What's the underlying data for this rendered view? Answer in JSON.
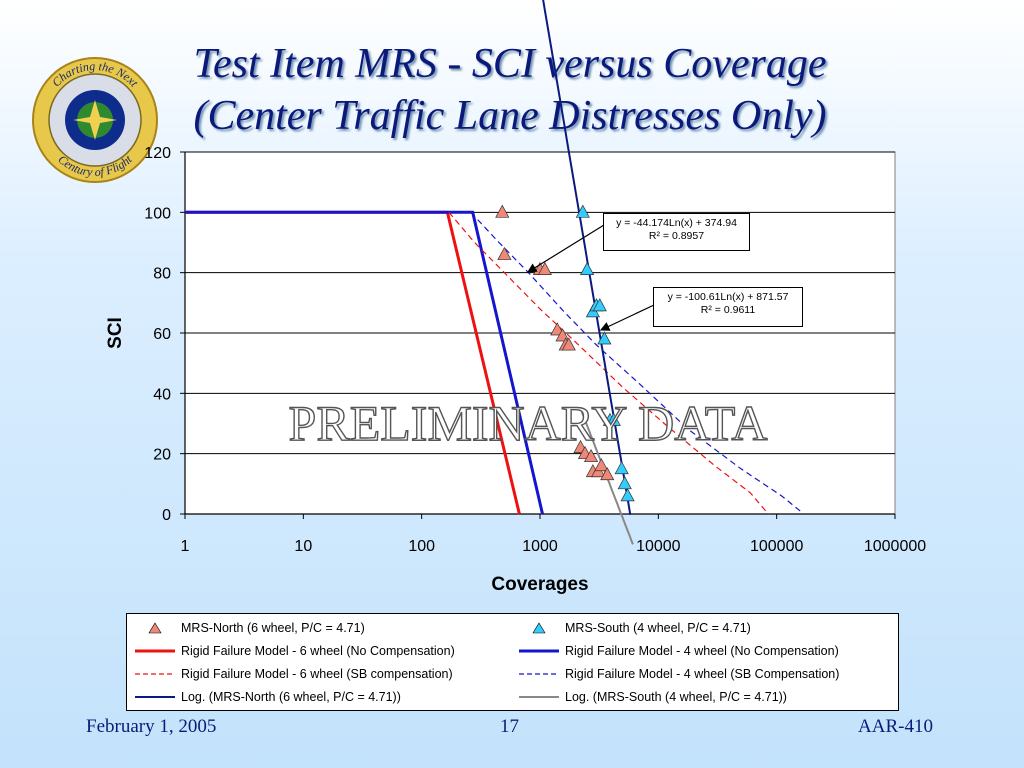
{
  "slide": {
    "title_line1": "Test Item MRS - SCI versus Coverage",
    "title_line2": "(Center Traffic Lane Distresses Only)",
    "footer_date": "February 1, 2005",
    "footer_page": "17",
    "footer_code": "AAR-410",
    "watermark": "PRELIMINARY DATA",
    "seal_text_top": "Charting the Next",
    "seal_text_bottom": "Century of Flight",
    "seal_ring": "FEDERAL AVIATION ADMINISTRATION"
  },
  "colors": {
    "title": "#0b1a7a",
    "north_marker": "#f08878",
    "south_marker": "#33ccff",
    "rigid6": "#ee1111",
    "rigid4": "#1515cc",
    "log_north": "#0a1a80",
    "log_south": "#888888"
  },
  "chart_data": {
    "type": "scatter",
    "title": "",
    "xlabel": "Coverages",
    "ylabel": "SCI",
    "x_scale": "log",
    "xlim": [
      1,
      1000000
    ],
    "ylim": [
      0,
      120
    ],
    "x_ticks": [
      "1",
      "10",
      "100",
      "1000",
      "10000",
      "100000",
      "1000000"
    ],
    "y_ticks": [
      "0",
      "20",
      "40",
      "60",
      "80",
      "100",
      "120"
    ],
    "grid": "horizontal",
    "legend_placement": "bottom",
    "series": [
      {
        "name": "MRS-North (6 wheel, P/C = 4.71)",
        "kind": "marker",
        "color": "#f08878",
        "points": [
          [
            480,
            100
          ],
          [
            500,
            86
          ],
          [
            1000,
            81
          ],
          [
            1100,
            81
          ],
          [
            1400,
            61
          ],
          [
            1550,
            59
          ],
          [
            1650,
            56
          ],
          [
            1750,
            56
          ],
          [
            2200,
            22
          ],
          [
            2400,
            20
          ],
          [
            2700,
            19
          ],
          [
            2800,
            14
          ],
          [
            3100,
            14
          ],
          [
            3300,
            16
          ],
          [
            3700,
            13
          ]
        ]
      },
      {
        "name": "MRS-South (4 wheel, P/C = 4.71)",
        "kind": "marker",
        "color": "#33ccff",
        "points": [
          [
            2300,
            100
          ],
          [
            2500,
            81
          ],
          [
            2800,
            67
          ],
          [
            3000,
            69
          ],
          [
            3200,
            69
          ],
          [
            3500,
            58
          ],
          [
            3900,
            31
          ],
          [
            4200,
            31
          ],
          [
            4900,
            15
          ],
          [
            5200,
            10
          ],
          [
            5500,
            6
          ]
        ]
      },
      {
        "name": "Rigid Failure Model - 6 wheel (No Compensation)",
        "kind": "line",
        "style": "solid",
        "color": "#ee1111",
        "points": [
          [
            1,
            100
          ],
          [
            165,
            100
          ],
          [
            670,
            0
          ]
        ]
      },
      {
        "name": "Rigid Failure Model - 4 wheel (No Compensation)",
        "kind": "line",
        "style": "solid",
        "color": "#1515cc",
        "points": [
          [
            1,
            100
          ],
          [
            270,
            100
          ],
          [
            1050,
            0
          ]
        ]
      },
      {
        "name": "Rigid Failure Model - 6 wheel (SB compensation)",
        "kind": "line",
        "style": "dashed",
        "color": "#ee1111",
        "points": [
          [
            170,
            100
          ],
          [
            280,
            90
          ],
          [
            500,
            80
          ],
          [
            1000,
            68
          ],
          [
            2000,
            57
          ],
          [
            5000,
            42
          ],
          [
            12000,
            29
          ],
          [
            30000,
            16
          ],
          [
            60000,
            7
          ],
          [
            85000,
            0
          ]
        ]
      },
      {
        "name": "Rigid Failure Model - 4 wheel (SB Compensation)",
        "kind": "line",
        "style": "dashed",
        "color": "#1515cc",
        "points": [
          [
            260,
            100
          ],
          [
            450,
            90
          ],
          [
            800,
            80
          ],
          [
            1600,
            67
          ],
          [
            3000,
            56
          ],
          [
            7000,
            43
          ],
          [
            18000,
            28
          ],
          [
            50000,
            15
          ],
          [
            110000,
            6
          ],
          [
            170000,
            0
          ]
        ]
      },
      {
        "name": "Log. (MRS-North (6 wheel, P/C = 4.71))",
        "kind": "trendline",
        "style": "solid",
        "color": "#0a1a80",
        "equation": "y = -100.61Ln(x) + 871.57",
        "r2": "R² = 0.9611",
        "a": -100.61,
        "b": 871.57,
        "x_range": [
          450,
          5800
        ]
      },
      {
        "name": "Log. (MRS-South (4 wheel, P/C = 4.71))",
        "kind": "trendline",
        "style": "solid",
        "color": "#888888",
        "equation": "y = -44.174Ln(x) + 374.94",
        "r2": "R² = 0.8957",
        "a": -44.174,
        "b": 374.94,
        "x_range": [
          2250,
          6100
        ]
      }
    ],
    "annotations": [
      {
        "text_line1": "y = -44.174Ln(x) + 374.94",
        "text_line2": "R² = 0.8957"
      },
      {
        "text_line1": "y = -100.61Ln(x) + 871.57",
        "text_line2": "R² = 0.9611"
      }
    ]
  }
}
